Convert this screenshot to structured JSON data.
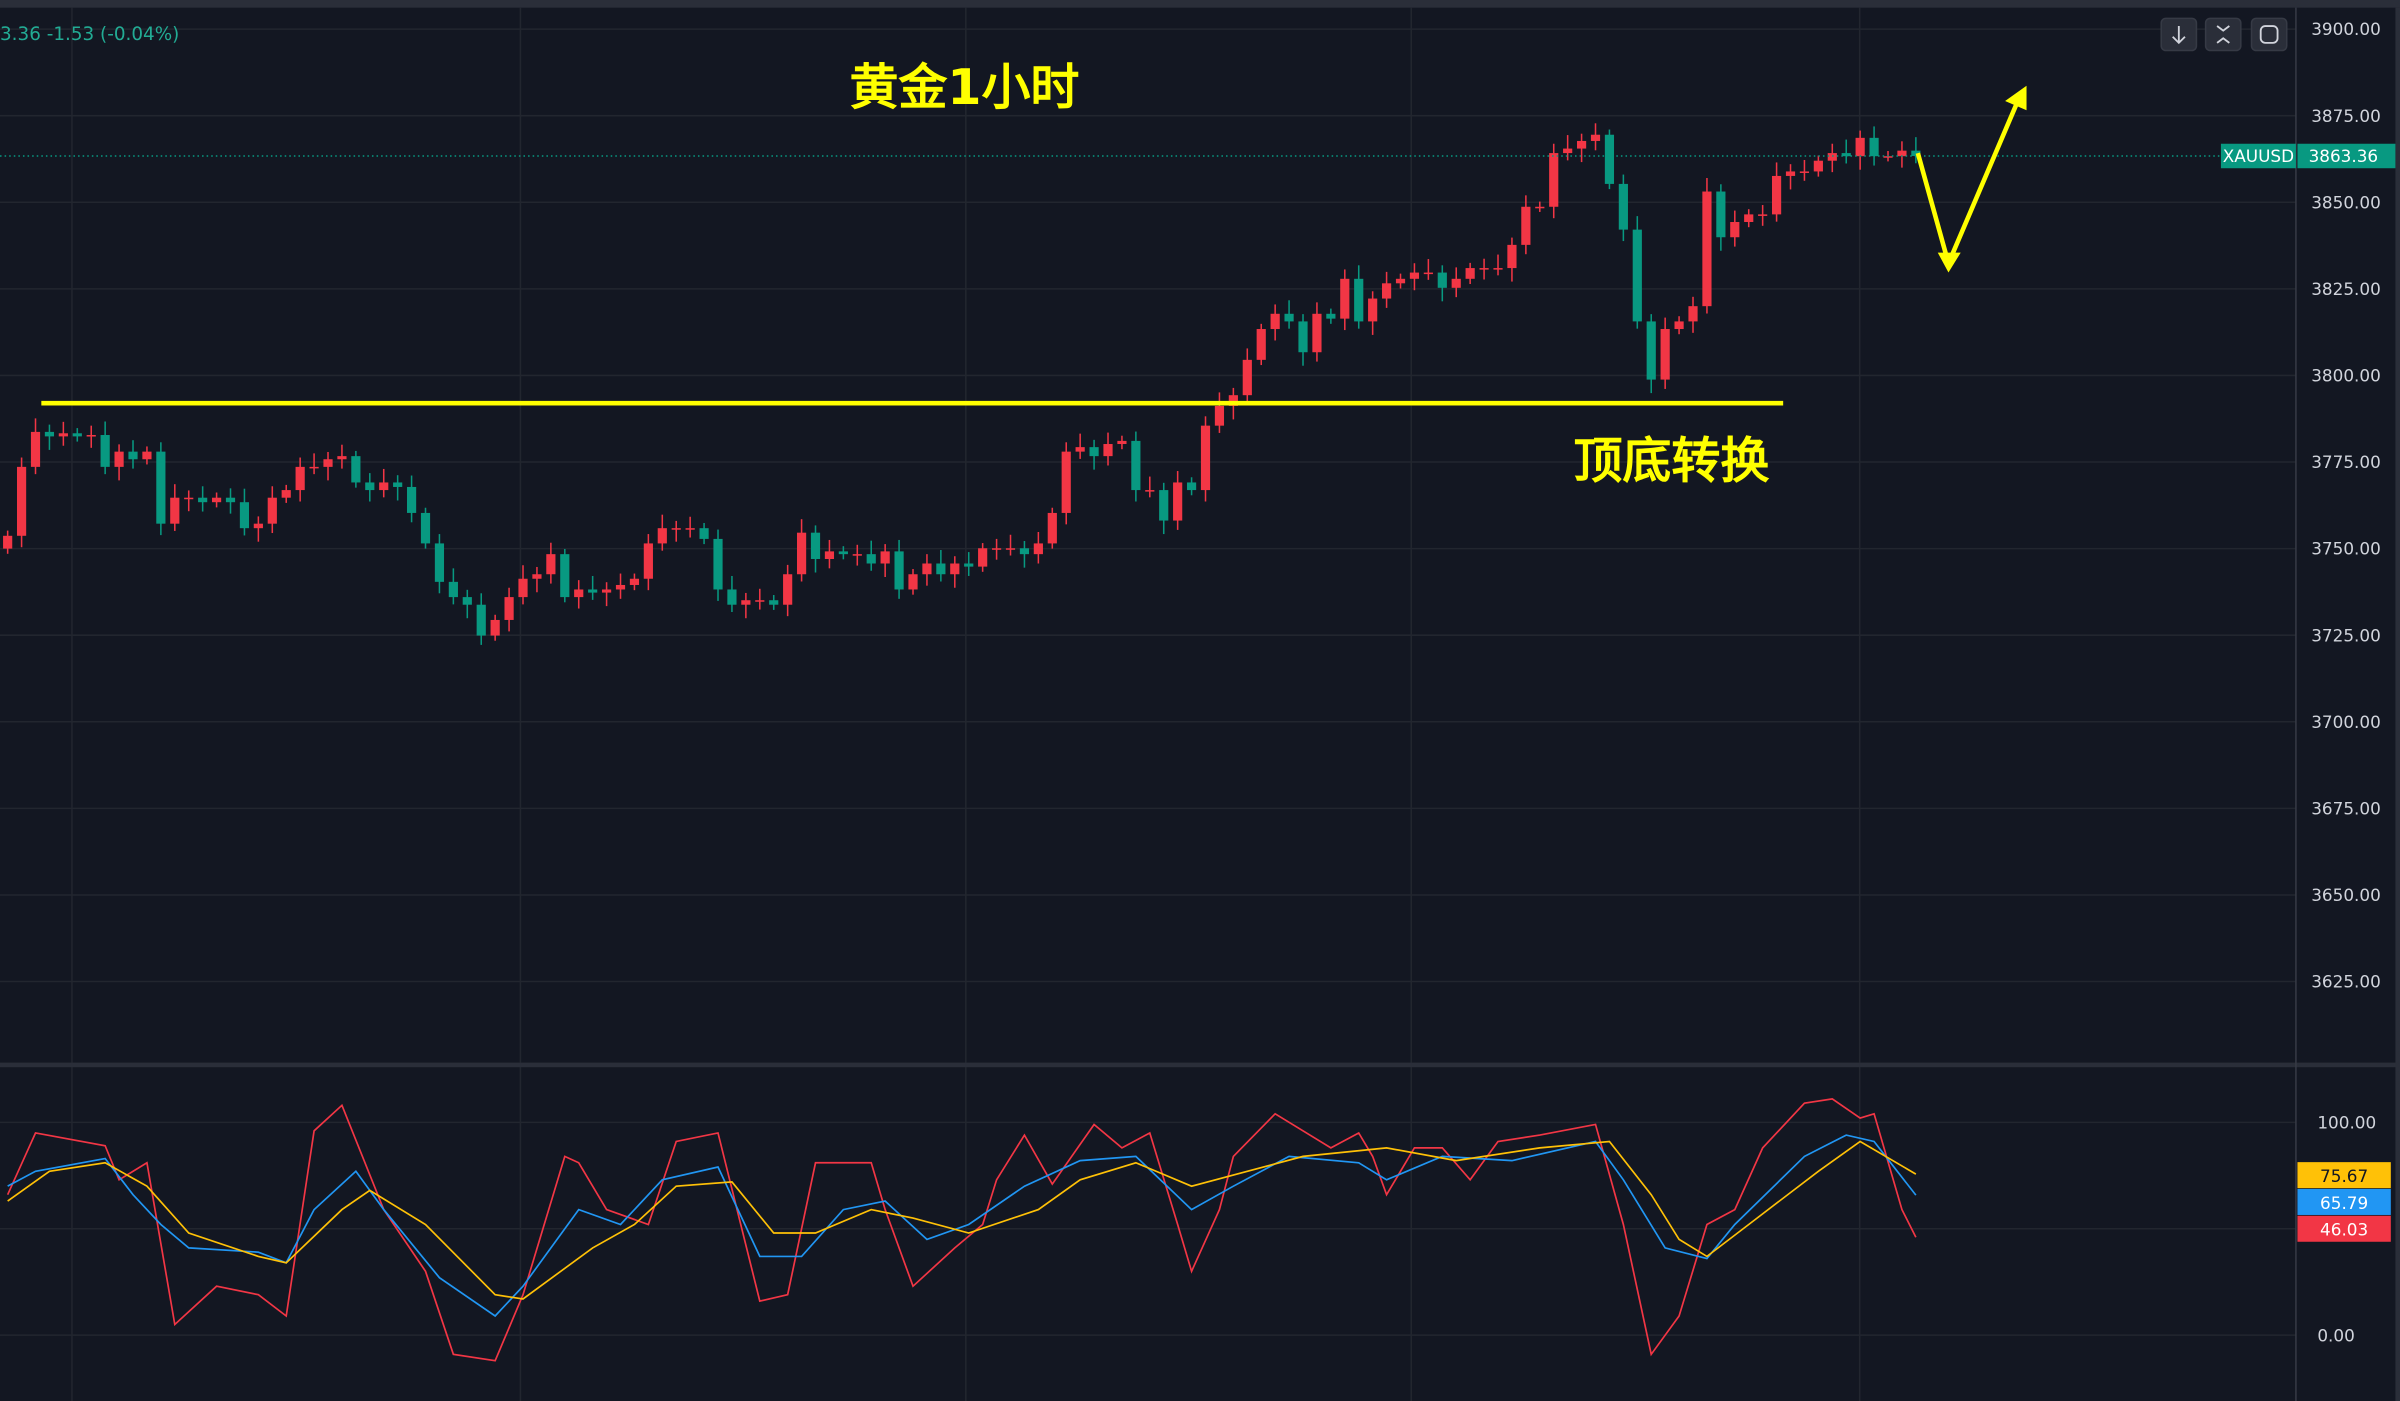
{
  "header": {
    "ohlc_change": "3.36  -1.53 (-0.04%)"
  },
  "toolbar": {
    "buttons": [
      {
        "icon": "arrow-down-icon"
      },
      {
        "icon": "collapse-icon"
      },
      {
        "icon": "fullscreen-icon"
      }
    ]
  },
  "symbol_label": {
    "symbol": "XAUUSD",
    "price": "3863.36",
    "color": "#089981"
  },
  "annotations": {
    "title": "黄金1小时",
    "note": "顶底转换",
    "color": "#ffff00",
    "support_level": 3792
  },
  "colors": {
    "up": "#f23645",
    "down": "#089981",
    "background": "#131722"
  },
  "chart_data": [
    {
      "type": "candlestick",
      "title": "",
      "yaxis_ticks": [
        "3900.00",
        "3875.00",
        "3850.00",
        "3825.00",
        "3800.00",
        "3775.00",
        "3750.00",
        "3725.00",
        "3700.00",
        "3675.00",
        "3650.00",
        "3625.00"
      ],
      "ylim": [
        3618,
        3905
      ],
      "grid": true,
      "last_price": 3863.36,
      "closes": [
        3753.7,
        3773.6,
        3783.7,
        3782.4,
        3783.3,
        3782.4,
        3782.8,
        3773.6,
        3778,
        3775.8,
        3778,
        3757.2,
        3764.7,
        3764.7,
        3763.4,
        3764.7,
        3763.4,
        3755.9,
        3757.2,
        3764.7,
        3766.9,
        3773.6,
        3773.6,
        3775.8,
        3776.7,
        3769.1,
        3766.9,
        3769.1,
        3767.8,
        3760.3,
        3751.5,
        3740.4,
        3736,
        3733.8,
        3724.9,
        3729.4,
        3736,
        3741.3,
        3742.6,
        3748.4,
        3736,
        3738.2,
        3737.3,
        3738.2,
        3739.5,
        3741.3,
        3751.5,
        3755.9,
        3755.9,
        3755.9,
        3752.8,
        3738.2,
        3733.8,
        3735.1,
        3735.1,
        3733.8,
        3742.6,
        3754.6,
        3747,
        3749.2,
        3748.4,
        3748.4,
        3745.7,
        3749.2,
        3738.2,
        3742.6,
        3745.7,
        3742.6,
        3745.7,
        3744.8,
        3750.1,
        3750.1,
        3750.1,
        3748.4,
        3751.5,
        3760.3,
        3778,
        3779.3,
        3776.7,
        3780.2,
        3781.1,
        3766.9,
        3766.9,
        3758.1,
        3769.1,
        3766.9,
        3785.5,
        3791.2,
        3794.3,
        3804.5,
        3813.4,
        3817.8,
        3815.6,
        3806.7,
        3817.8,
        3816.4,
        3827.9,
        3815.6,
        3822.2,
        3826.6,
        3827.9,
        3829.7,
        3829.7,
        3825.3,
        3827.9,
        3831,
        3831,
        3831,
        3837.7,
        3848.7,
        3848.7,
        3864.2,
        3865.5,
        3867.7,
        3869.5,
        3855.3,
        3842.1,
        3815.6,
        3798.8,
        3813.4,
        3815.6,
        3820,
        3853.1,
        3839.9,
        3844.3,
        3846.5,
        3846.5,
        3857.6,
        3858.9,
        3858.9,
        3862,
        3864.2,
        3863.3,
        3868.6,
        3863.3,
        3863.3,
        3864.9,
        3863.36
      ],
      "first_open": 3750
    },
    {
      "type": "line",
      "yaxis_ticks": [
        "100.00",
        "0.00"
      ],
      "ylim": [
        -15,
        115
      ],
      "series": [
        {
          "color": "#f23645",
          "last": "46.03",
          "points": [
            [
              0,
              66
            ],
            [
              2,
              95
            ],
            [
              7,
              89
            ],
            [
              8,
              73
            ],
            [
              10,
              81
            ],
            [
              12,
              5
            ],
            [
              15,
              23
            ],
            [
              18,
              19
            ],
            [
              20,
              9
            ],
            [
              22,
              96
            ],
            [
              24,
              108
            ],
            [
              27,
              59
            ],
            [
              30,
              30
            ],
            [
              32,
              -9
            ],
            [
              35,
              -12
            ],
            [
              37,
              19
            ],
            [
              40,
              84
            ],
            [
              41,
              81
            ],
            [
              43,
              59
            ],
            [
              46,
              52
            ],
            [
              48,
              91
            ],
            [
              51,
              95
            ],
            [
              54,
              16
            ],
            [
              56,
              19
            ],
            [
              58,
              81
            ],
            [
              62,
              81
            ],
            [
              63,
              59
            ],
            [
              65,
              23
            ],
            [
              68,
              41
            ],
            [
              70,
              52
            ],
            [
              71,
              73
            ],
            [
              73,
              94
            ],
            [
              75,
              71
            ],
            [
              78,
              99
            ],
            [
              80,
              88
            ],
            [
              82,
              95
            ],
            [
              84,
              52
            ],
            [
              85,
              30
            ],
            [
              87,
              59
            ],
            [
              88,
              84
            ],
            [
              91,
              104
            ],
            [
              95,
              88
            ],
            [
              97,
              95
            ],
            [
              98,
              84
            ],
            [
              99,
              66
            ],
            [
              101,
              88
            ],
            [
              103,
              88
            ],
            [
              105,
              73
            ],
            [
              107,
              91
            ],
            [
              110,
              94
            ],
            [
              114,
              99
            ],
            [
              116,
              52
            ],
            [
              118,
              -9
            ],
            [
              120,
              9
            ],
            [
              122,
              52
            ],
            [
              124,
              59
            ],
            [
              126,
              88
            ],
            [
              129,
              109
            ],
            [
              131,
              111
            ],
            [
              133,
              102
            ],
            [
              134,
              104
            ],
            [
              136,
              59
            ],
            [
              137,
              46.03
            ]
          ]
        },
        {
          "color": "#2196f3",
          "last": "65.79",
          "points": [
            [
              0,
              70
            ],
            [
              2,
              77
            ],
            [
              7,
              83
            ],
            [
              9,
              66
            ],
            [
              11,
              52
            ],
            [
              13,
              41
            ],
            [
              18,
              39
            ],
            [
              20,
              34
            ],
            [
              22,
              59
            ],
            [
              25,
              77
            ],
            [
              27,
              59
            ],
            [
              31,
              27
            ],
            [
              35,
              9
            ],
            [
              37,
              23
            ],
            [
              41,
              59
            ],
            [
              44,
              52
            ],
            [
              47,
              73
            ],
            [
              51,
              79
            ],
            [
              54,
              37
            ],
            [
              57,
              37
            ],
            [
              60,
              59
            ],
            [
              63,
              63
            ],
            [
              66,
              45
            ],
            [
              69,
              52
            ],
            [
              73,
              70
            ],
            [
              77,
              82
            ],
            [
              81,
              84
            ],
            [
              85,
              59
            ],
            [
              88,
              70
            ],
            [
              92,
              84
            ],
            [
              97,
              81
            ],
            [
              99,
              73
            ],
            [
              103,
              84
            ],
            [
              108,
              82
            ],
            [
              114,
              91
            ],
            [
              116,
              73
            ],
            [
              119,
              41
            ],
            [
              122,
              36
            ],
            [
              124,
              52
            ],
            [
              129,
              84
            ],
            [
              132,
              94
            ],
            [
              134,
              91
            ],
            [
              137,
              65.79
            ]
          ]
        },
        {
          "color": "#ffc107",
          "last": "75.67",
          "points": [
            [
              0,
              63
            ],
            [
              3,
              77
            ],
            [
              7,
              81
            ],
            [
              10,
              70
            ],
            [
              13,
              48
            ],
            [
              18,
              37
            ],
            [
              20,
              34
            ],
            [
              24,
              59
            ],
            [
              26,
              68
            ],
            [
              30,
              52
            ],
            [
              35,
              19
            ],
            [
              37,
              17
            ],
            [
              42,
              41
            ],
            [
              45,
              52
            ],
            [
              48,
              70
            ],
            [
              52,
              72
            ],
            [
              55,
              48
            ],
            [
              58,
              48
            ],
            [
              62,
              59
            ],
            [
              65,
              55
            ],
            [
              69,
              48
            ],
            [
              74,
              59
            ],
            [
              77,
              73
            ],
            [
              81,
              81
            ],
            [
              85,
              70
            ],
            [
              89,
              77
            ],
            [
              93,
              84
            ],
            [
              99,
              88
            ],
            [
              104,
              82
            ],
            [
              110,
              88
            ],
            [
              115,
              91
            ],
            [
              118,
              66
            ],
            [
              120,
              45
            ],
            [
              122,
              37
            ],
            [
              125,
              52
            ],
            [
              130,
              77
            ],
            [
              133,
              91
            ],
            [
              137,
              75.67
            ]
          ]
        }
      ]
    }
  ]
}
